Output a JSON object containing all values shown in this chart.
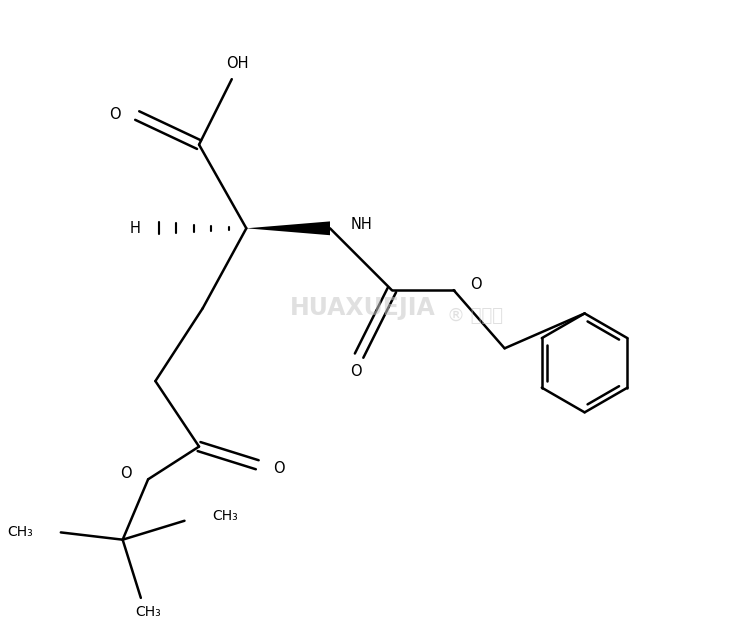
{
  "background_color": "#ffffff",
  "line_color": "#000000",
  "line_width": 1.8,
  "figsize": [
    7.45,
    6.21
  ],
  "dpi": 100,
  "xlim": [
    0,
    10
  ],
  "ylim": [
    0,
    8.3
  ]
}
